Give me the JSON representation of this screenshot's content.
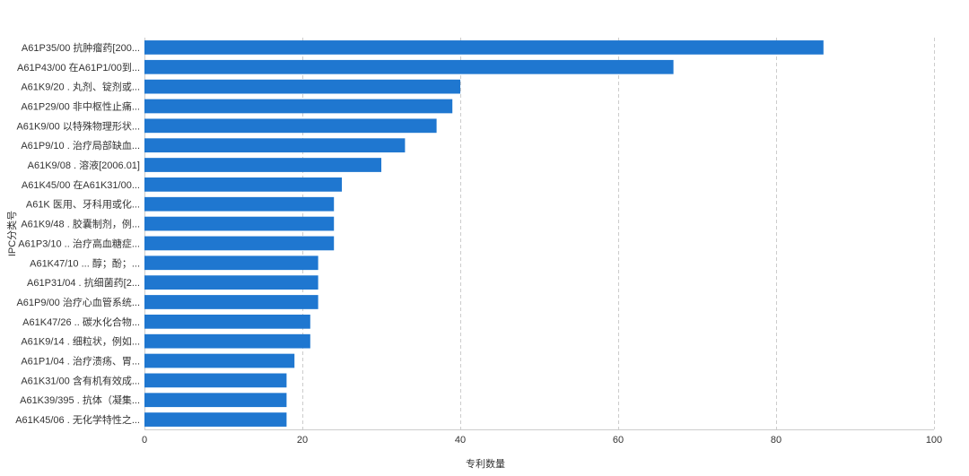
{
  "chart_data": {
    "type": "bar",
    "orientation": "horizontal",
    "xlabel": "专利数量",
    "ylabel": "IPC分类号",
    "xlim": [
      0,
      100
    ],
    "xticks": [
      0,
      20,
      40,
      60,
      80,
      100
    ],
    "grid": "vertical dashed",
    "bar_color": "#1f77d0",
    "categories": [
      "A61P35/00 抗肿瘤药[200...",
      "A61P43/00 在A61P1/00到...",
      "A61K9/20 . 丸剂、锭剂或...",
      "A61P29/00 非中枢性止痛...",
      "A61K9/00 以特殊物理形状...",
      "A61P9/10 . 治疗局部缺血...",
      "A61K9/08 . 溶液[2006.01]",
      "A61K45/00 在A61K31/00...",
      "A61K 医用、牙科用或化...",
      "A61K9/48 . 胶囊制剂，例...",
      "A61P3/10 .. 治疗高血糖症...",
      "A61K47/10 ... 醇；酚；...",
      "A61P31/04 . 抗细菌药[2...",
      "A61P9/00 治疗心血管系统...",
      "A61K47/26 .. 碳水化合物...",
      "A61K9/14 . 细粒状，例如...",
      "A61P1/04 . 治疗溃疡、胃...",
      "A61K31/00 含有机有效成...",
      "A61K39/395 . 抗体（凝集...",
      "A61K45/06 . 无化学特性之..."
    ],
    "values": [
      86,
      67,
      40,
      39,
      37,
      33,
      30,
      25,
      24,
      24,
      24,
      22,
      22,
      22,
      21,
      21,
      19,
      18,
      18,
      18
    ]
  }
}
